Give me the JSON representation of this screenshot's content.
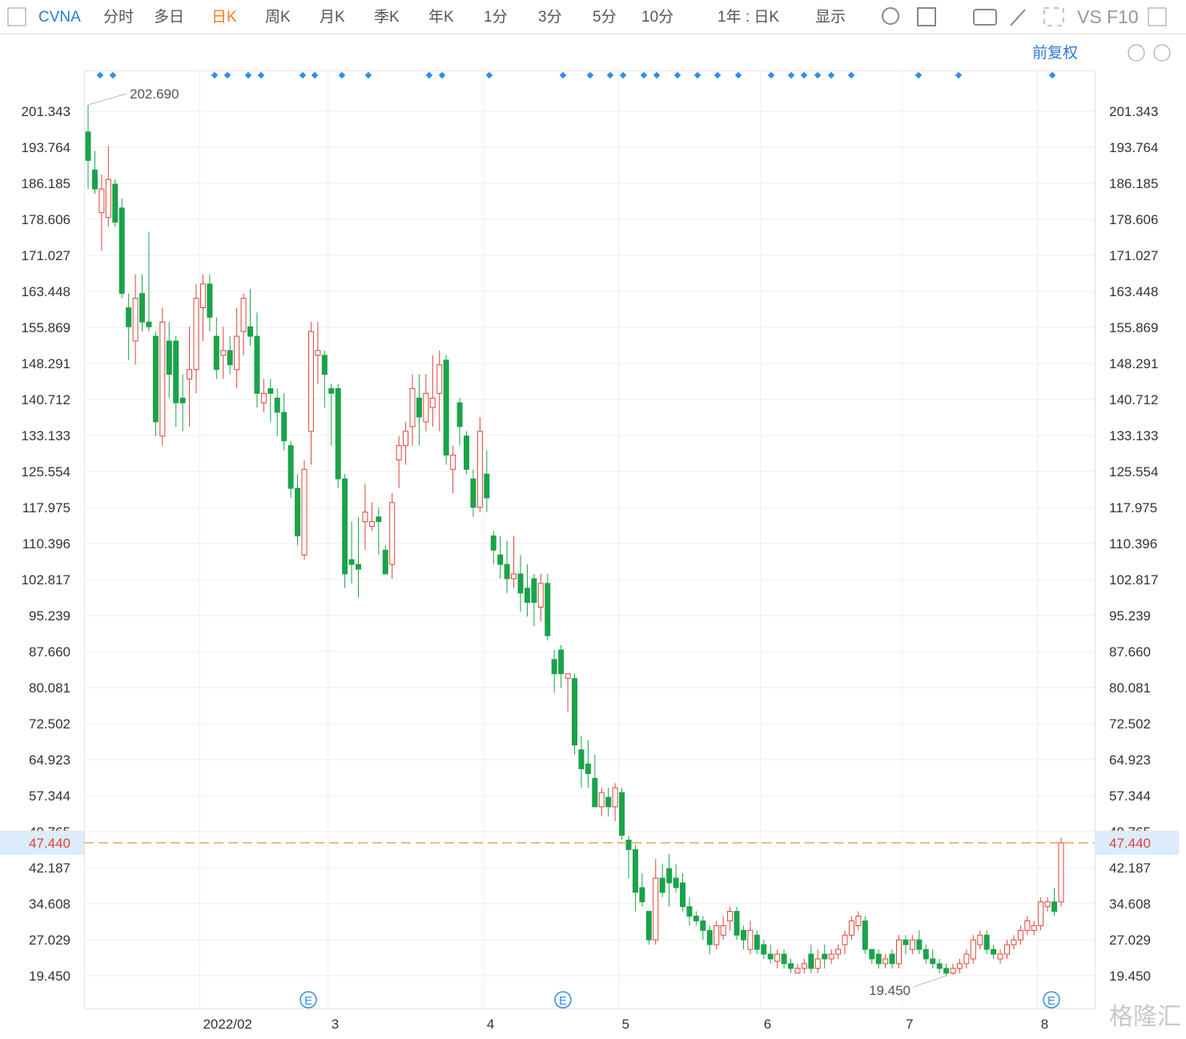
{
  "toolbar": {
    "symbol": "CVNA",
    "items": [
      "分时",
      "多日",
      "日K",
      "周K",
      "月K",
      "季K",
      "年K",
      "1分",
      "3分",
      "5分",
      "10分"
    ],
    "range": "1年 : 日K",
    "display": "显示",
    "vs": "VS",
    "f10": "F10"
  },
  "adjust": "前复权",
  "earnings_marker": "E",
  "watermark": "格隆汇",
  "chart_data": {
    "type": "candlestick",
    "up_color": "#e0433a",
    "down_color": "#1aa34a",
    "grid": true,
    "categories": [
      null,
      null,
      null,
      null,
      null,
      null,
      null,
      null,
      null,
      null,
      null,
      null,
      null,
      null,
      null,
      null,
      null,
      "2022/02",
      null,
      null,
      null,
      null,
      null,
      null,
      null,
      null,
      null,
      null,
      null,
      null,
      null,
      null,
      null,
      null,
      null,
      null,
      "3",
      null,
      null,
      null,
      null,
      null,
      null,
      null,
      null,
      null,
      null,
      null,
      null,
      null,
      null,
      null,
      null,
      null,
      null,
      null,
      null,
      null,
      null,
      "4",
      null,
      null,
      null,
      null,
      null,
      null,
      null,
      null,
      null,
      null,
      null,
      null,
      null,
      null,
      null,
      null,
      null,
      null,
      null,
      "5",
      null,
      null,
      null,
      null,
      null,
      null,
      null,
      null,
      null,
      null,
      null,
      null,
      null,
      null,
      null,
      null,
      null,
      null,
      null,
      null,
      "6",
      null,
      null,
      null,
      null,
      null,
      null,
      null,
      null,
      null,
      null,
      null,
      null,
      null,
      null,
      null,
      null,
      null,
      null,
      null,
      null,
      "7",
      null,
      null,
      null,
      null,
      null,
      null,
      null,
      null,
      null,
      null,
      null,
      null,
      null,
      null,
      null,
      null,
      null,
      null,
      null,
      "8",
      null,
      null,
      null
    ],
    "open": [
      197,
      189,
      180,
      179,
      186,
      181,
      160,
      153,
      163,
      157,
      154,
      133,
      153,
      153,
      141,
      145,
      147,
      160,
      165,
      154,
      150,
      151,
      147,
      155,
      156,
      154,
      140,
      143,
      141,
      138,
      131,
      122,
      108,
      134,
      150,
      150,
      143,
      143,
      124,
      107,
      106,
      115,
      114,
      116,
      109,
      106,
      128,
      131,
      135,
      141,
      136,
      139,
      142,
      149,
      126,
      140,
      133,
      124,
      118,
      125,
      112,
      108,
      106,
      103,
      104,
      101,
      103,
      97,
      102,
      86,
      88,
      82,
      82,
      67,
      64,
      61,
      55,
      57,
      55,
      58,
      48,
      46,
      38,
      33,
      27,
      40,
      42,
      40,
      39,
      34,
      32,
      31,
      29,
      26,
      28,
      31,
      33,
      29,
      25,
      28,
      26,
      24,
      22.5,
      24,
      22,
      20,
      21,
      24,
      21,
      24,
      23,
      24,
      26,
      28,
      30,
      31,
      25,
      24,
      22,
      24,
      22,
      27,
      25,
      27,
      25,
      23,
      22,
      21,
      20,
      21,
      22,
      23,
      26,
      28,
      25,
      23,
      24,
      26,
      27,
      29,
      29,
      30,
      34,
      35,
      35
    ],
    "high": [
      202.69,
      193,
      188,
      194,
      187,
      183,
      163,
      167,
      167,
      176,
      155,
      160,
      157,
      154,
      146,
      156,
      165,
      167,
      167,
      158,
      156,
      154,
      160,
      163,
      164,
      159,
      145,
      145,
      143,
      142,
      132,
      125,
      128,
      157,
      157,
      151,
      144,
      144,
      125,
      115,
      116,
      123,
      119,
      118,
      110,
      121,
      133,
      136,
      146,
      146,
      146,
      150,
      151,
      150,
      131,
      141,
      134,
      126,
      137,
      130,
      113,
      112,
      111,
      112,
      108,
      106,
      104,
      104,
      104,
      88,
      89,
      83,
      83,
      70,
      69,
      66,
      59,
      59,
      60,
      59,
      49,
      47,
      41,
      33,
      44,
      43,
      45,
      43,
      41,
      36,
      33,
      32,
      30,
      31,
      32,
      34,
      34,
      30,
      31,
      29,
      27,
      26,
      25,
      25,
      23,
      22,
      23,
      26,
      25,
      26,
      25,
      26,
      29,
      32,
      33,
      32,
      25,
      25,
      24,
      25,
      28,
      28,
      28,
      29,
      26,
      25,
      23,
      22,
      22,
      23,
      25,
      28,
      29,
      29,
      26,
      25,
      27,
      28,
      30,
      32,
      31,
      36,
      36,
      38,
      48.5
    ],
    "low": [
      185,
      184,
      172,
      177,
      177,
      162,
      149,
      148,
      155,
      155,
      133,
      131,
      141,
      135,
      134,
      135,
      142,
      153,
      155,
      145,
      145,
      146,
      143,
      150,
      152,
      139,
      138,
      136,
      133,
      130,
      120,
      110,
      107,
      127,
      144,
      139,
      131,
      122,
      101,
      102,
      99,
      109,
      113,
      108,
      104,
      103,
      122,
      127,
      131,
      131,
      134,
      135,
      134,
      127,
      121,
      131,
      125,
      116,
      117,
      117,
      106,
      103,
      100,
      101,
      96,
      95,
      93,
      94,
      90,
      79,
      80,
      75,
      66,
      59,
      59,
      55,
      53,
      53,
      52,
      48,
      40,
      33,
      34,
      26,
      26,
      36,
      34,
      37,
      33,
      30,
      30,
      27,
      24,
      25,
      27,
      29,
      27,
      25,
      24,
      24,
      23,
      22,
      21,
      21,
      20,
      20,
      20,
      20,
      20,
      21,
      22,
      23,
      24,
      27,
      29,
      24,
      22,
      21,
      21,
      21,
      21,
      24,
      24,
      24,
      22,
      21,
      20,
      19.45,
      19.6,
      20,
      21,
      22,
      25,
      24,
      23,
      22,
      23,
      25,
      26,
      28,
      28,
      29,
      33,
      32,
      34
    ],
    "close": [
      191,
      185,
      185,
      187,
      178,
      163,
      156,
      162,
      157,
      156,
      136,
      157,
      146,
      140,
      140,
      147,
      162,
      165,
      158,
      147,
      151,
      148,
      154,
      162,
      154,
      142,
      142,
      142,
      138,
      132,
      122,
      112,
      126,
      155,
      151,
      146,
      142,
      124,
      104,
      106,
      105,
      117,
      115,
      115,
      104,
      119,
      131,
      134,
      143,
      137,
      142,
      141,
      148,
      129,
      129,
      135,
      126,
      118,
      134,
      120,
      109,
      106,
      103,
      104,
      100,
      98,
      98,
      102,
      91,
      83,
      83,
      83,
      68,
      63,
      62,
      55,
      58,
      55,
      59,
      49,
      46,
      37,
      35,
      27,
      40,
      37,
      39,
      38,
      34,
      32,
      31,
      29,
      26,
      30,
      30,
      33,
      28,
      27,
      29,
      25,
      24,
      23,
      24,
      22,
      21,
      21,
      22,
      21,
      23,
      23,
      24,
      25,
      28,
      31,
      32,
      25,
      23,
      22,
      23,
      22,
      27,
      26,
      27,
      25,
      23,
      22,
      21,
      20,
      21,
      22,
      24,
      27,
      28,
      25,
      24,
      24,
      26,
      27,
      29,
      31,
      30,
      35,
      35,
      33,
      47.44
    ],
    "ylim": [
      12.55,
      209.93
    ],
    "yticks": [
      {
        "value": 19.45,
        "label": "19.450"
      },
      27.029,
      34.608,
      42.187,
      49.765,
      57.344,
      64.923,
      72.502,
      80.081,
      {
        "value": 87.66,
        "label": "87.660"
      },
      95.239,
      102.817,
      110.396,
      117.975,
      125.554,
      133.133,
      140.712,
      148.291,
      155.869,
      163.448,
      171.027,
      178.606,
      186.185,
      193.764,
      201.343
    ],
    "last_price": {
      "value": 47.44,
      "label": "47.440"
    },
    "high_label": {
      "value": 202.69,
      "label": "202.690"
    },
    "low_label": {
      "value": 19.45,
      "label": "19.450"
    }
  }
}
